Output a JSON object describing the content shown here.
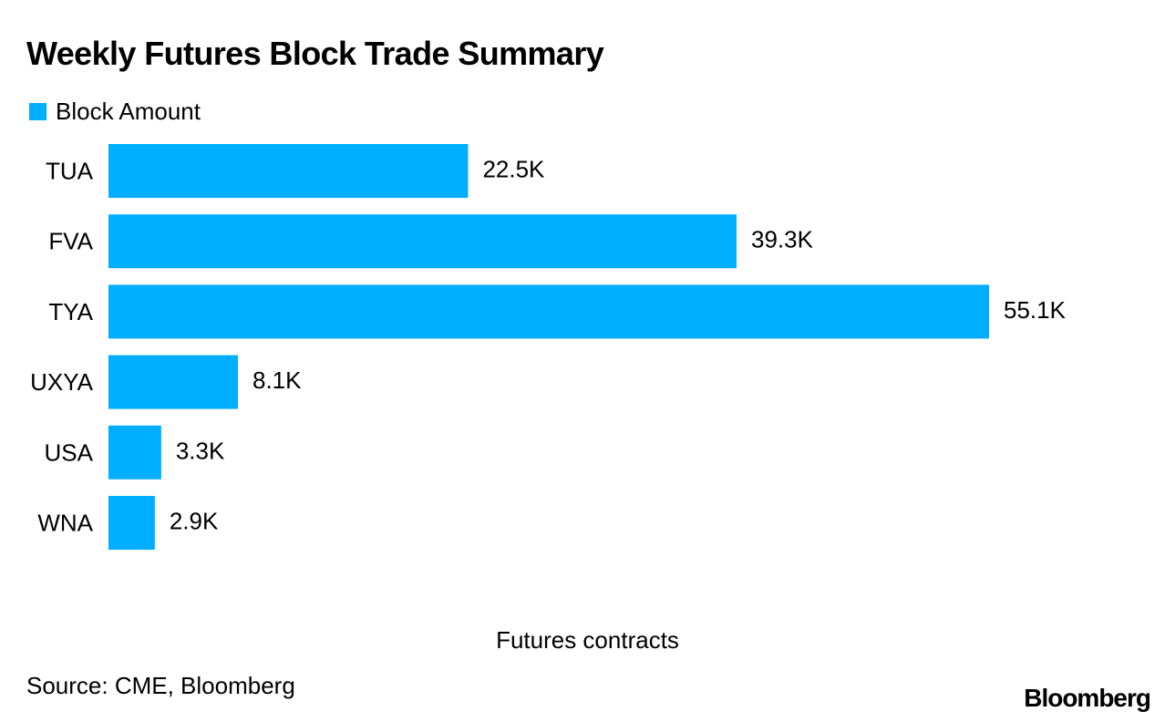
{
  "colors": {
    "bar": "#00AEFF",
    "text": "#000000",
    "background": "#FFFFFF"
  },
  "chart_data": {
    "type": "bar",
    "orientation": "horizontal",
    "title": "Weekly Futures Block Trade Summary",
    "legend": [
      "Block Amount"
    ],
    "legend_position": "top-left",
    "categories": [
      "TUA",
      "FVA",
      "TYA",
      "UXYA",
      "USA",
      "WNA"
    ],
    "series": [
      {
        "name": "Block Amount",
        "values": [
          22.5,
          39.3,
          55.1,
          8.1,
          3.3,
          2.9
        ],
        "value_labels": [
          "22.5K",
          "39.3K",
          "55.1K",
          "8.1K",
          "3.3K",
          "2.9K"
        ]
      }
    ],
    "value_unit": "K",
    "xlabel": "Futures contracts",
    "ylabel": "",
    "xlim": [
      0,
      55.1
    ],
    "grid": false
  },
  "footer": {
    "source": "Source: CME, Bloomberg",
    "brand": "Bloomberg"
  }
}
